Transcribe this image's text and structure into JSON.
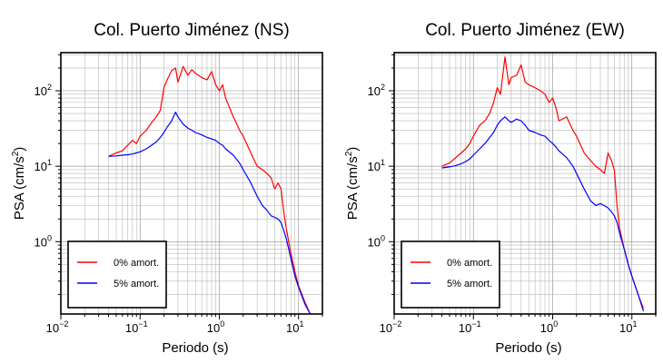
{
  "chart_data": [
    {
      "type": "line",
      "title": "Col. Puerto Jiménez (NS)",
      "xlabel": "Periodo (s)",
      "ylabel": "PSA (cm/s",
      "ylabel_sup": "2",
      "ylabel_close": ")",
      "xscale": "log",
      "yscale": "log",
      "xlim": [
        0.01,
        20
      ],
      "ylim": [
        0.11,
        320
      ],
      "grid": true,
      "legend_position": "bottom-left",
      "xticks": [
        {
          "value": 0.01,
          "base": "10",
          "exp": "−2"
        },
        {
          "value": 0.1,
          "base": "10",
          "exp": "−1"
        },
        {
          "value": 1,
          "base": "10",
          "exp": "0"
        },
        {
          "value": 10,
          "base": "10",
          "exp": "1"
        }
      ],
      "yticks": [
        {
          "value": 1,
          "base": "10",
          "exp": "0"
        },
        {
          "value": 10,
          "base": "10",
          "exp": "1"
        },
        {
          "value": 100,
          "base": "10",
          "exp": "2"
        }
      ],
      "series": [
        {
          "name": "0% amort.",
          "color": "#ff0000",
          "x": [
            0.04,
            0.05,
            0.06,
            0.07,
            0.08,
            0.09,
            0.1,
            0.12,
            0.14,
            0.16,
            0.18,
            0.2,
            0.22,
            0.25,
            0.28,
            0.3,
            0.35,
            0.4,
            0.45,
            0.5,
            0.6,
            0.7,
            0.8,
            0.9,
            1.0,
            1.1,
            1.2,
            1.5,
            1.8,
            2.0,
            2.5,
            3.0,
            3.5,
            4.0,
            4.5,
            5.0,
            5.5,
            6.0,
            6.5,
            7.0,
            8.0,
            9.0,
            10,
            12,
            14
          ],
          "y": [
            13.5,
            15,
            16,
            19,
            22,
            20,
            25,
            30,
            38,
            45,
            55,
            110,
            140,
            185,
            200,
            130,
            210,
            160,
            190,
            170,
            150,
            140,
            180,
            120,
            100,
            120,
            80,
            45,
            30,
            25,
            15,
            10,
            9,
            8,
            7,
            5,
            6,
            5,
            2.5,
            1.5,
            0.7,
            0.4,
            0.26,
            0.16,
            0.11
          ]
        },
        {
          "name": "5% amort.",
          "color": "#0000ff",
          "x": [
            0.04,
            0.05,
            0.06,
            0.07,
            0.08,
            0.09,
            0.1,
            0.12,
            0.14,
            0.16,
            0.18,
            0.2,
            0.22,
            0.25,
            0.28,
            0.3,
            0.35,
            0.4,
            0.45,
            0.5,
            0.6,
            0.7,
            0.8,
            0.9,
            1.0,
            1.1,
            1.2,
            1.5,
            1.8,
            2.0,
            2.5,
            3.0,
            3.5,
            4.0,
            4.5,
            5.0,
            5.5,
            6.0,
            6.5,
            7.0,
            8.0,
            9.0,
            10,
            12,
            14
          ],
          "y": [
            13.5,
            13.7,
            14,
            14.2,
            14.5,
            15,
            15.5,
            17,
            19,
            21,
            24,
            28,
            33,
            40,
            52,
            45,
            36,
            32,
            30,
            28,
            26,
            24,
            23,
            22,
            20,
            19,
            17,
            14,
            11,
            9,
            6,
            4,
            3,
            2.6,
            2.2,
            2.1,
            2.0,
            1.8,
            1.4,
            1.1,
            0.6,
            0.35,
            0.25,
            0.15,
            0.11
          ]
        }
      ]
    },
    {
      "type": "line",
      "title": "Col. Puerto Jiménez (EW)",
      "xlabel": "Periodo (s)",
      "ylabel": "PSA (cm/s",
      "ylabel_sup": "2",
      "ylabel_close": ")",
      "xscale": "log",
      "yscale": "log",
      "xlim": [
        0.01,
        20
      ],
      "ylim": [
        0.11,
        320
      ],
      "grid": true,
      "legend_position": "bottom-left",
      "xticks": [
        {
          "value": 0.01,
          "base": "10",
          "exp": "−2"
        },
        {
          "value": 0.1,
          "base": "10",
          "exp": "−1"
        },
        {
          "value": 1,
          "base": "10",
          "exp": "0"
        },
        {
          "value": 10,
          "base": "10",
          "exp": "1"
        }
      ],
      "yticks": [
        {
          "value": 1,
          "base": "10",
          "exp": "0"
        },
        {
          "value": 10,
          "base": "10",
          "exp": "1"
        },
        {
          "value": 100,
          "base": "10",
          "exp": "2"
        }
      ],
      "series": [
        {
          "name": "0% amort.",
          "color": "#ff0000",
          "x": [
            0.04,
            0.05,
            0.06,
            0.07,
            0.08,
            0.09,
            0.1,
            0.12,
            0.14,
            0.16,
            0.18,
            0.2,
            0.22,
            0.25,
            0.28,
            0.3,
            0.35,
            0.4,
            0.45,
            0.5,
            0.6,
            0.7,
            0.8,
            0.9,
            1.0,
            1.1,
            1.2,
            1.5,
            1.8,
            2.0,
            2.5,
            3.0,
            3.5,
            4.0,
            4.5,
            5.0,
            5.5,
            6.0,
            6.5,
            7.0,
            8.0,
            9.0,
            10,
            12,
            14
          ],
          "y": [
            10,
            11,
            13,
            15,
            17,
            20,
            25,
            35,
            40,
            50,
            70,
            110,
            90,
            280,
            120,
            150,
            160,
            220,
            130,
            120,
            110,
            100,
            90,
            70,
            80,
            60,
            40,
            45,
            30,
            25,
            15,
            12,
            10,
            9,
            8,
            15,
            12,
            9,
            3,
            1.5,
            0.8,
            0.5,
            0.35,
            0.2,
            0.13
          ]
        },
        {
          "name": "5% amort.",
          "color": "#0000ff",
          "x": [
            0.04,
            0.05,
            0.06,
            0.07,
            0.08,
            0.09,
            0.1,
            0.12,
            0.14,
            0.16,
            0.18,
            0.2,
            0.22,
            0.25,
            0.28,
            0.3,
            0.35,
            0.4,
            0.45,
            0.5,
            0.6,
            0.7,
            0.8,
            0.9,
            1.0,
            1.1,
            1.2,
            1.5,
            1.8,
            2.0,
            2.5,
            3.0,
            3.5,
            4.0,
            4.5,
            5.0,
            5.5,
            6.0,
            6.5,
            7.0,
            8.0,
            9.0,
            10,
            12,
            14
          ],
          "y": [
            9.5,
            9.8,
            10.2,
            10.8,
            11.5,
            12.5,
            14,
            17,
            20,
            24,
            28,
            35,
            40,
            45,
            40,
            38,
            42,
            40,
            35,
            30,
            28,
            26,
            25,
            22,
            20,
            18,
            16,
            13,
            10,
            8,
            5,
            3.5,
            3.0,
            3.2,
            3.0,
            2.8,
            2.5,
            2.2,
            1.8,
            1.3,
            0.8,
            0.5,
            0.35,
            0.2,
            0.12
          ]
        }
      ]
    }
  ]
}
